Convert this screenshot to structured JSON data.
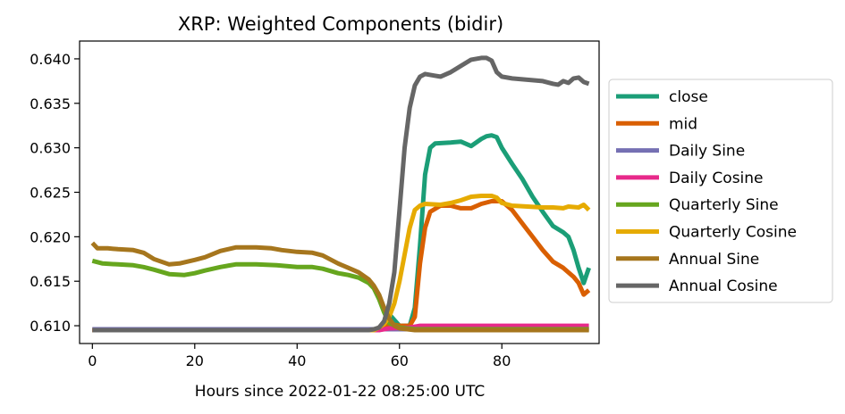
{
  "chart_data": {
    "type": "line",
    "title": "XRP: Weighted Components (bidir)",
    "xlabel": "Hours since 2022-01-22 08:25:00 UTC",
    "ylabel": "",
    "xlim": [
      -2.5,
      99
    ],
    "ylim": [
      0.608,
      0.642
    ],
    "xticks": [
      0,
      20,
      40,
      60,
      80
    ],
    "yticks": [
      0.61,
      0.615,
      0.62,
      0.625,
      0.63,
      0.635,
      0.64
    ],
    "ytick_labels": [
      "0.610",
      "0.615",
      "0.620",
      "0.625",
      "0.630",
      "0.635",
      "0.640"
    ],
    "grid": false,
    "legend_position": "right, outside",
    "series": [
      {
        "name": "close",
        "color": "#1b9e77",
        "points": [
          [
            0,
            0.6095
          ],
          [
            56,
            0.6095
          ],
          [
            57,
            0.6105
          ],
          [
            58,
            0.6113
          ],
          [
            60,
            0.61
          ],
          [
            62,
            0.61
          ],
          [
            63,
            0.612
          ],
          [
            64,
            0.619
          ],
          [
            65,
            0.627
          ],
          [
            66,
            0.63
          ],
          [
            67,
            0.6305
          ],
          [
            70,
            0.6306
          ],
          [
            72,
            0.6307
          ],
          [
            74,
            0.6302
          ],
          [
            76,
            0.631
          ],
          [
            77,
            0.6313
          ],
          [
            78,
            0.6314
          ],
          [
            79,
            0.6312
          ],
          [
            80,
            0.63
          ],
          [
            82,
            0.6282
          ],
          [
            84,
            0.6265
          ],
          [
            86,
            0.6245
          ],
          [
            88,
            0.6228
          ],
          [
            90,
            0.6212
          ],
          [
            92,
            0.6205
          ],
          [
            93,
            0.62
          ],
          [
            94,
            0.6185
          ],
          [
            95,
            0.6165
          ],
          [
            96,
            0.6148
          ],
          [
            97,
            0.6165
          ]
        ]
      },
      {
        "name": "mid",
        "color": "#d95f02",
        "points": [
          [
            0,
            0.6095
          ],
          [
            56,
            0.6095
          ],
          [
            57,
            0.61
          ],
          [
            58,
            0.6102
          ],
          [
            60,
            0.61
          ],
          [
            62,
            0.61
          ],
          [
            63,
            0.611
          ],
          [
            64,
            0.617
          ],
          [
            65,
            0.621
          ],
          [
            66,
            0.6228
          ],
          [
            68,
            0.6235
          ],
          [
            70,
            0.6235
          ],
          [
            72,
            0.6232
          ],
          [
            74,
            0.6232
          ],
          [
            76,
            0.6237
          ],
          [
            78,
            0.624
          ],
          [
            80,
            0.624
          ],
          [
            82,
            0.623
          ],
          [
            84,
            0.6215
          ],
          [
            86,
            0.62
          ],
          [
            88,
            0.6185
          ],
          [
            90,
            0.6172
          ],
          [
            92,
            0.6165
          ],
          [
            94,
            0.6155
          ],
          [
            95,
            0.6148
          ],
          [
            96,
            0.6135
          ],
          [
            97,
            0.614
          ]
        ]
      },
      {
        "name": "Daily Sine",
        "color": "#7570b3",
        "points": [
          [
            0,
            0.6096
          ],
          [
            97,
            0.6096
          ]
        ]
      },
      {
        "name": "Daily Cosine",
        "color": "#e7298a",
        "points": [
          [
            0,
            0.6095
          ],
          [
            56,
            0.6095
          ],
          [
            58,
            0.6097
          ],
          [
            62,
            0.6098
          ],
          [
            64,
            0.61
          ],
          [
            97,
            0.61
          ]
        ]
      },
      {
        "name": "Quarterly Sine",
        "color": "#66a61e",
        "points": [
          [
            0,
            0.6173
          ],
          [
            2,
            0.617
          ],
          [
            5,
            0.6169
          ],
          [
            8,
            0.6168
          ],
          [
            10,
            0.6166
          ],
          [
            12,
            0.6163
          ],
          [
            15,
            0.6158
          ],
          [
            18,
            0.6157
          ],
          [
            20,
            0.6159
          ],
          [
            22,
            0.6162
          ],
          [
            25,
            0.6166
          ],
          [
            28,
            0.6169
          ],
          [
            32,
            0.6169
          ],
          [
            36,
            0.6168
          ],
          [
            40,
            0.6166
          ],
          [
            43,
            0.6166
          ],
          [
            45,
            0.6164
          ],
          [
            48,
            0.6159
          ],
          [
            50,
            0.6157
          ],
          [
            52,
            0.6154
          ],
          [
            54,
            0.6148
          ],
          [
            55,
            0.6142
          ],
          [
            56,
            0.613
          ],
          [
            57,
            0.6115
          ],
          [
            58,
            0.6103
          ],
          [
            60,
            0.6098
          ],
          [
            63,
            0.6096
          ],
          [
            97,
            0.6096
          ]
        ]
      },
      {
        "name": "Quarterly Cosine",
        "color": "#e6ab02",
        "points": [
          [
            0,
            0.6095
          ],
          [
            55,
            0.6095
          ],
          [
            56,
            0.6098
          ],
          [
            57,
            0.6102
          ],
          [
            58,
            0.611
          ],
          [
            59,
            0.6125
          ],
          [
            60,
            0.615
          ],
          [
            61,
            0.618
          ],
          [
            62,
            0.621
          ],
          [
            63,
            0.623
          ],
          [
            64,
            0.6235
          ],
          [
            65,
            0.6237
          ],
          [
            68,
            0.6236
          ],
          [
            70,
            0.6238
          ],
          [
            72,
            0.6241
          ],
          [
            74,
            0.6245
          ],
          [
            76,
            0.6246
          ],
          [
            78,
            0.6246
          ],
          [
            79,
            0.6244
          ],
          [
            80,
            0.6238
          ],
          [
            82,
            0.6235
          ],
          [
            85,
            0.6234
          ],
          [
            88,
            0.6233
          ],
          [
            90,
            0.6233
          ],
          [
            92,
            0.6232
          ],
          [
            93,
            0.6234
          ],
          [
            95,
            0.6233
          ],
          [
            96,
            0.6236
          ],
          [
            97,
            0.623
          ]
        ]
      },
      {
        "name": "Annual Sine",
        "color": "#a6761d",
        "points": [
          [
            0,
            0.6193
          ],
          [
            1,
            0.6187
          ],
          [
            3,
            0.6187
          ],
          [
            5,
            0.6186
          ],
          [
            8,
            0.6185
          ],
          [
            10,
            0.6182
          ],
          [
            12,
            0.6175
          ],
          [
            15,
            0.6169
          ],
          [
            17,
            0.617
          ],
          [
            20,
            0.6174
          ],
          [
            22,
            0.6177
          ],
          [
            25,
            0.6184
          ],
          [
            28,
            0.6188
          ],
          [
            32,
            0.6188
          ],
          [
            35,
            0.6187
          ],
          [
            37,
            0.6185
          ],
          [
            40,
            0.6183
          ],
          [
            43,
            0.6182
          ],
          [
            45,
            0.6179
          ],
          [
            48,
            0.617
          ],
          [
            50,
            0.6165
          ],
          [
            52,
            0.616
          ],
          [
            54,
            0.6152
          ],
          [
            55,
            0.6145
          ],
          [
            56,
            0.6135
          ],
          [
            57,
            0.612
          ],
          [
            58,
            0.6108
          ],
          [
            59,
            0.61
          ],
          [
            60,
            0.6097
          ],
          [
            63,
            0.6095
          ],
          [
            97,
            0.6095
          ]
        ]
      },
      {
        "name": "Annual Cosine",
        "color": "#666666",
        "points": [
          [
            0,
            0.6095
          ],
          [
            54,
            0.6095
          ],
          [
            55,
            0.6096
          ],
          [
            56,
            0.6098
          ],
          [
            57,
            0.6105
          ],
          [
            58,
            0.6125
          ],
          [
            59,
            0.616
          ],
          [
            60,
            0.623
          ],
          [
            61,
            0.63
          ],
          [
            62,
            0.6345
          ],
          [
            63,
            0.637
          ],
          [
            64,
            0.638
          ],
          [
            65,
            0.6383
          ],
          [
            67,
            0.6381
          ],
          [
            68,
            0.638
          ],
          [
            70,
            0.6385
          ],
          [
            72,
            0.6392
          ],
          [
            74,
            0.6399
          ],
          [
            76,
            0.6401
          ],
          [
            77,
            0.6401
          ],
          [
            78,
            0.6398
          ],
          [
            79,
            0.6385
          ],
          [
            80,
            0.638
          ],
          [
            82,
            0.6378
          ],
          [
            84,
            0.6377
          ],
          [
            86,
            0.6376
          ],
          [
            88,
            0.6375
          ],
          [
            90,
            0.6372
          ],
          [
            91,
            0.6371
          ],
          [
            92,
            0.6375
          ],
          [
            93,
            0.6373
          ],
          [
            94,
            0.6378
          ],
          [
            95,
            0.6379
          ],
          [
            96,
            0.6374
          ],
          [
            97,
            0.6372
          ]
        ]
      }
    ]
  }
}
